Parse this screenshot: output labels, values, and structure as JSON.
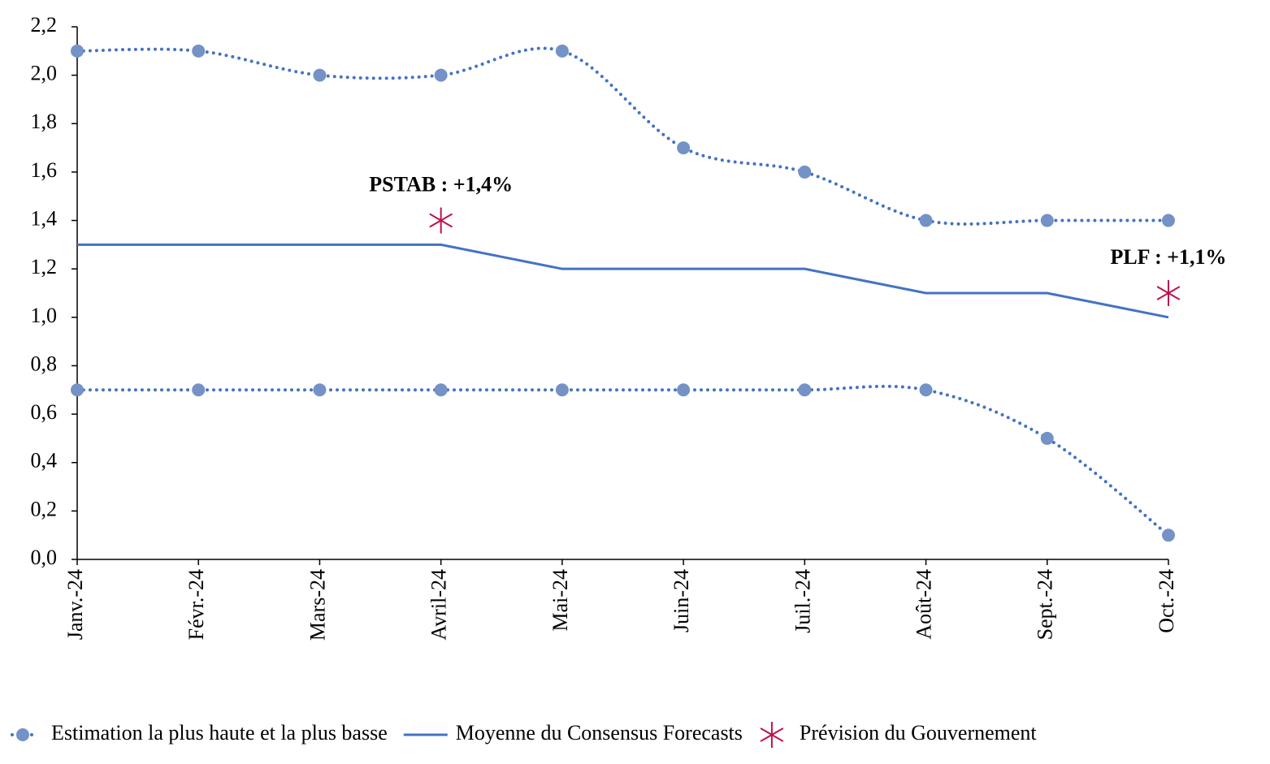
{
  "chart_data": {
    "type": "line",
    "categories": [
      "Janv.-24",
      "Févr.-24",
      "Mars-24",
      "Avril-24",
      "Mai-24",
      "Juin-24",
      "Juil.-24",
      "Août-24",
      "Sept.-24",
      "Oct.-24"
    ],
    "series": [
      {
        "name": "Estimation la plus haute et la plus basse",
        "color": "#4472c4",
        "marker_color": "#7492c6",
        "style": "dotted",
        "values": [
          2.1,
          2.1,
          2.0,
          2.0,
          2.1,
          1.7,
          1.6,
          1.4,
          1.4,
          1.4
        ]
      },
      {
        "color": "#4472c4",
        "marker_color": "#7492c6",
        "style": "dotted",
        "values": [
          0.7,
          0.7,
          0.7,
          0.7,
          0.7,
          0.7,
          0.7,
          0.7,
          0.5,
          0.1
        ]
      },
      {
        "name": "Moyenne du Consensus Forecasts",
        "color": "#4472c4",
        "style": "solid",
        "values": [
          1.3,
          1.3,
          1.3,
          1.3,
          1.2,
          1.2,
          1.2,
          1.1,
          1.1,
          1.0
        ]
      },
      {
        "name": "Prévision du Gouvernement",
        "color": "#c0104f",
        "style": "star",
        "values": [
          null,
          null,
          null,
          1.4,
          null,
          null,
          null,
          null,
          null,
          1.1
        ],
        "value_labels": [
          null,
          null,
          null,
          "PSTAB : +1,4%",
          null,
          null,
          null,
          null,
          null,
          "PLF : +1,1%"
        ]
      }
    ],
    "ylim": [
      0,
      2.2
    ],
    "yticks": [
      {
        "value": 0,
        "label": "0,0"
      },
      {
        "value": 0.2,
        "label": "0,2"
      },
      {
        "value": 0.4,
        "label": "0,4"
      },
      {
        "value": 0.6,
        "label": "0,6"
      },
      {
        "value": 0.8,
        "label": "0,8"
      },
      {
        "value": 1.0,
        "label": "1,0"
      },
      {
        "value": 1.2,
        "label": "1,2"
      },
      {
        "value": 1.4,
        "label": "1,4"
      },
      {
        "value": 1.6,
        "label": "1,6"
      },
      {
        "value": 1.8,
        "label": "1,8"
      },
      {
        "value": 2.0,
        "label": "2,0"
      },
      {
        "value": 2.2,
        "label": "2,2"
      }
    ]
  }
}
